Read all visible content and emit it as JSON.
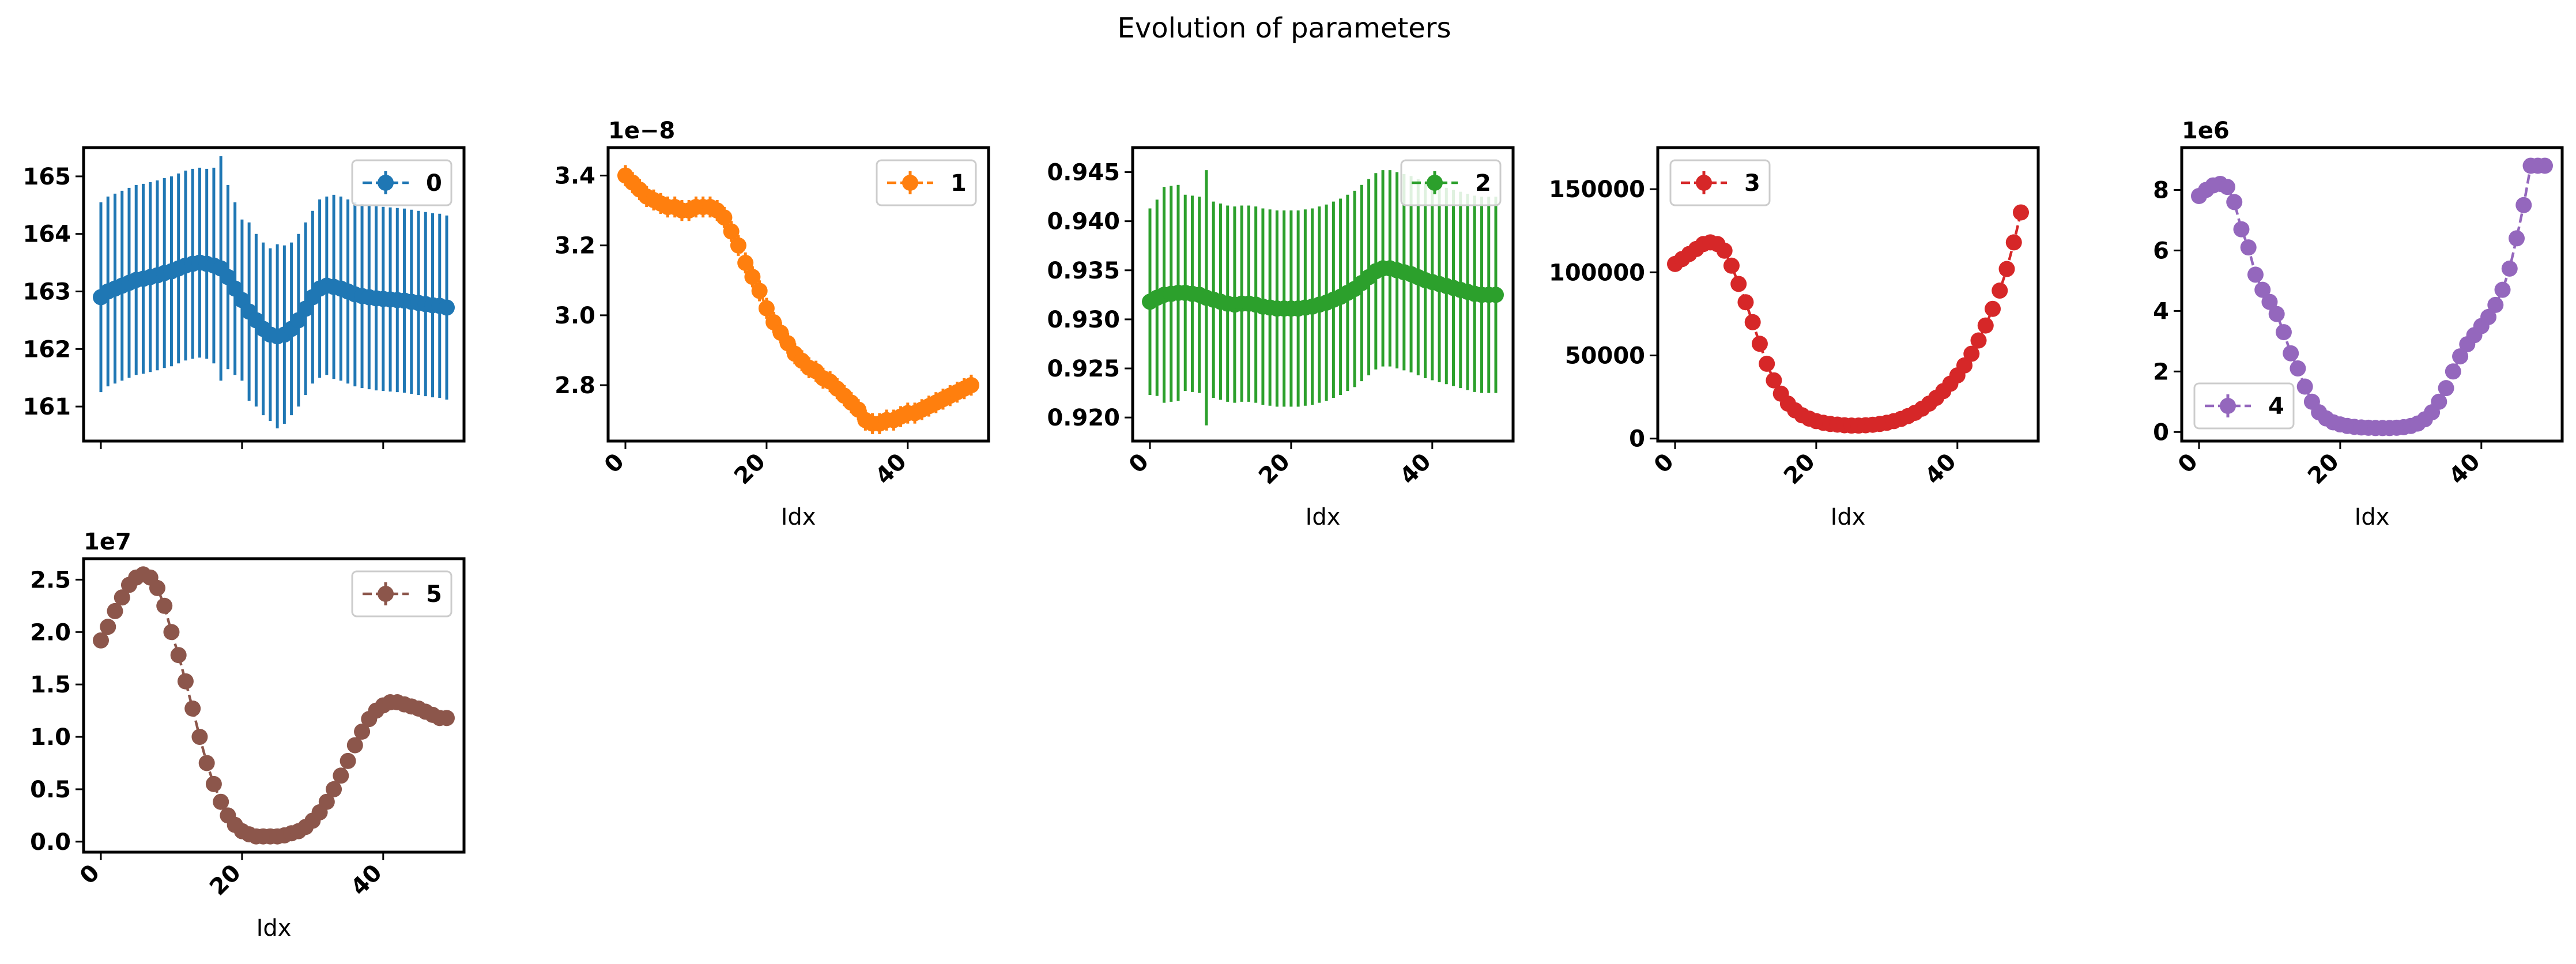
{
  "figure": {
    "title": "Evolution of parameters",
    "xlabel": "Idx"
  },
  "chart_data": [
    {
      "type": "errorbar",
      "series_name": "0",
      "color": "#1f77b4",
      "offset_text": "",
      "xlabel": "",
      "show_x_tick_labels": false,
      "legend_loc": "upper right",
      "xlim": [
        -2.45,
        51.45
      ],
      "ylim": [
        160.4,
        165.5
      ],
      "xticks": [
        0,
        20,
        40
      ],
      "yticks": [
        161,
        162,
        163,
        164,
        165
      ],
      "ytick_labels": [
        "161",
        "162",
        "163",
        "164",
        "165"
      ],
      "x": [
        0,
        1,
        2,
        3,
        4,
        5,
        6,
        7,
        8,
        9,
        10,
        11,
        12,
        13,
        14,
        15,
        16,
        17,
        18,
        19,
        20,
        21,
        22,
        23,
        24,
        25,
        26,
        27,
        28,
        29,
        30,
        31,
        32,
        33,
        34,
        35,
        36,
        37,
        38,
        39,
        40,
        41,
        42,
        43,
        44,
        45,
        46,
        47,
        48,
        49
      ],
      "y": [
        162.9,
        163.0,
        163.05,
        163.1,
        163.15,
        163.2,
        163.22,
        163.25,
        163.28,
        163.32,
        163.35,
        163.4,
        163.45,
        163.48,
        163.5,
        163.48,
        163.45,
        163.4,
        163.25,
        163.05,
        162.85,
        162.65,
        162.5,
        162.35,
        162.25,
        162.22,
        162.25,
        162.35,
        162.5,
        162.7,
        162.9,
        163.05,
        163.1,
        163.08,
        163.05,
        163.0,
        162.95,
        162.92,
        162.9,
        162.88,
        162.87,
        162.86,
        162.85,
        162.84,
        162.82,
        162.8,
        162.78,
        162.76,
        162.75,
        162.72
      ],
      "yerr": [
        1.65,
        1.65,
        1.65,
        1.65,
        1.65,
        1.65,
        1.65,
        1.65,
        1.65,
        1.65,
        1.65,
        1.65,
        1.65,
        1.65,
        1.65,
        1.65,
        1.7,
        1.95,
        1.6,
        1.5,
        1.4,
        1.55,
        1.5,
        1.5,
        1.5,
        1.6,
        1.55,
        1.5,
        1.5,
        1.5,
        1.5,
        1.55,
        1.55,
        1.6,
        1.6,
        1.6,
        1.6,
        1.6,
        1.6,
        1.6,
        1.6,
        1.6,
        1.6,
        1.6,
        1.6,
        1.6,
        1.6,
        1.6,
        1.6,
        1.6
      ]
    },
    {
      "type": "errorbar",
      "series_name": "1",
      "color": "#ff7f0e",
      "offset_text": "1e−8",
      "xlabel": "Idx",
      "show_x_tick_labels": true,
      "legend_loc": "upper right",
      "xlim": [
        -2.45,
        51.45
      ],
      "ylim": [
        2.64,
        3.48
      ],
      "xticks": [
        0,
        20,
        40
      ],
      "yticks": [
        2.8,
        3.0,
        3.2,
        3.4
      ],
      "ytick_labels": [
        "2.8",
        "3.0",
        "3.2",
        "3.4"
      ],
      "x": [
        0,
        1,
        2,
        3,
        4,
        5,
        6,
        7,
        8,
        9,
        10,
        11,
        12,
        13,
        14,
        15,
        16,
        17,
        18,
        19,
        20,
        21,
        22,
        23,
        24,
        25,
        26,
        27,
        28,
        29,
        30,
        31,
        32,
        33,
        34,
        35,
        36,
        37,
        38,
        39,
        40,
        41,
        42,
        43,
        44,
        45,
        46,
        47,
        48,
        49
      ],
      "y": [
        3.4,
        3.38,
        3.36,
        3.34,
        3.33,
        3.32,
        3.31,
        3.31,
        3.3,
        3.3,
        3.31,
        3.31,
        3.31,
        3.3,
        3.28,
        3.24,
        3.2,
        3.15,
        3.11,
        3.07,
        3.02,
        2.98,
        2.95,
        2.92,
        2.89,
        2.87,
        2.85,
        2.84,
        2.82,
        2.81,
        2.79,
        2.77,
        2.75,
        2.73,
        2.7,
        2.69,
        2.69,
        2.7,
        2.7,
        2.71,
        2.72,
        2.72,
        2.73,
        2.74,
        2.75,
        2.76,
        2.77,
        2.78,
        2.79,
        2.8
      ],
      "yerr": [
        0.03,
        0.03,
        0.03,
        0.03,
        0.03,
        0.03,
        0.03,
        0.03,
        0.03,
        0.03,
        0.03,
        0.03,
        0.03,
        0.03,
        0.03,
        0.03,
        0.03,
        0.03,
        0.03,
        0.03,
        0.03,
        0.03,
        0.03,
        0.03,
        0.03,
        0.03,
        0.03,
        0.03,
        0.03,
        0.03,
        0.03,
        0.03,
        0.03,
        0.03,
        0.03,
        0.03,
        0.03,
        0.03,
        0.03,
        0.03,
        0.03,
        0.03,
        0.03,
        0.03,
        0.03,
        0.03,
        0.03,
        0.03,
        0.03,
        0.03
      ]
    },
    {
      "type": "errorbar",
      "series_name": "2",
      "color": "#2ca02c",
      "offset_text": "",
      "xlabel": "Idx",
      "show_x_tick_labels": true,
      "legend_loc": "upper right",
      "xlim": [
        -2.45,
        51.45
      ],
      "ylim": [
        0.9176,
        0.9475
      ],
      "xticks": [
        0,
        20,
        40
      ],
      "yticks": [
        0.92,
        0.925,
        0.93,
        0.935,
        0.94,
        0.945
      ],
      "ytick_labels": [
        "0.920",
        "0.925",
        "0.930",
        "0.935",
        "0.940",
        "0.945"
      ],
      "x": [
        0,
        1,
        2,
        3,
        4,
        5,
        6,
        7,
        8,
        9,
        10,
        11,
        12,
        13,
        14,
        15,
        16,
        17,
        18,
        19,
        20,
        21,
        22,
        23,
        24,
        25,
        26,
        27,
        28,
        29,
        30,
        31,
        32,
        33,
        34,
        35,
        36,
        37,
        38,
        39,
        40,
        41,
        42,
        43,
        44,
        45,
        46,
        47,
        48,
        49
      ],
      "y": [
        0.9318,
        0.9322,
        0.9325,
        0.9326,
        0.9327,
        0.9327,
        0.9326,
        0.9325,
        0.9322,
        0.932,
        0.9318,
        0.9316,
        0.9315,
        0.9316,
        0.9316,
        0.9315,
        0.9313,
        0.9312,
        0.9311,
        0.9311,
        0.9311,
        0.9311,
        0.9312,
        0.9313,
        0.9315,
        0.9317,
        0.932,
        0.9323,
        0.9327,
        0.9331,
        0.9337,
        0.9343,
        0.9349,
        0.9352,
        0.9352,
        0.935,
        0.9348,
        0.9346,
        0.9343,
        0.934,
        0.9338,
        0.9336,
        0.9334,
        0.9332,
        0.933,
        0.9328,
        0.9326,
        0.9325,
        0.9325,
        0.9325
      ],
      "yerr": [
        0.0095,
        0.01,
        0.011,
        0.011,
        0.011,
        0.01,
        0.01,
        0.01,
        0.013,
        0.01,
        0.01,
        0.01,
        0.01,
        0.01,
        0.01,
        0.01,
        0.01,
        0.01,
        0.01,
        0.01,
        0.01,
        0.01,
        0.01,
        0.01,
        0.01,
        0.01,
        0.01,
        0.01,
        0.01,
        0.01,
        0.01,
        0.01,
        0.01,
        0.01,
        0.01,
        0.01,
        0.01,
        0.01,
        0.01,
        0.01,
        0.01,
        0.01,
        0.01,
        0.01,
        0.01,
        0.01,
        0.01,
        0.01,
        0.01,
        0.01
      ]
    },
    {
      "type": "errorbar",
      "series_name": "3",
      "color": "#d62728",
      "offset_text": "",
      "xlabel": "Idx",
      "show_x_tick_labels": true,
      "legend_loc": "upper left",
      "xlim": [
        -2.45,
        51.45
      ],
      "ylim": [
        -1500,
        175000
      ],
      "xticks": [
        0,
        20,
        40
      ],
      "yticks": [
        0,
        50000,
        100000,
        150000
      ],
      "ytick_labels": [
        "0",
        "50000",
        "100000",
        "150000"
      ],
      "x": [
        0,
        1,
        2,
        3,
        4,
        5,
        6,
        7,
        8,
        9,
        10,
        11,
        12,
        13,
        14,
        15,
        16,
        17,
        18,
        19,
        20,
        21,
        22,
        23,
        24,
        25,
        26,
        27,
        28,
        29,
        30,
        31,
        32,
        33,
        34,
        35,
        36,
        37,
        38,
        39,
        40,
        41,
        42,
        43,
        44,
        45,
        46,
        47,
        48,
        49
      ],
      "y": [
        105000,
        108000,
        111000,
        114000,
        117000,
        118000,
        117000,
        113000,
        104000,
        93000,
        82000,
        70000,
        57000,
        45000,
        35000,
        27000,
        21000,
        17000,
        14000,
        12000,
        10500,
        9500,
        8800,
        8400,
        8000,
        7800,
        7800,
        8000,
        8300,
        8800,
        9500,
        10500,
        11800,
        13500,
        15500,
        18000,
        21000,
        24500,
        28500,
        33000,
        38000,
        44000,
        51000,
        59000,
        68000,
        78000,
        89000,
        102000,
        118000,
        136000
      ],
      "yerr": [
        0,
        0,
        0,
        0,
        0,
        0,
        0,
        0,
        0,
        0,
        0,
        0,
        0,
        0,
        0,
        0,
        0,
        0,
        0,
        0,
        0,
        0,
        0,
        0,
        0,
        0,
        0,
        0,
        0,
        0,
        0,
        0,
        0,
        0,
        0,
        0,
        0,
        0,
        0,
        0,
        0,
        0,
        0,
        0,
        0,
        0,
        0,
        0,
        0,
        0
      ]
    },
    {
      "type": "errorbar",
      "series_name": "4",
      "color": "#9467bd",
      "offset_text": "1e6",
      "xlabel": "Idx",
      "show_x_tick_labels": true,
      "legend_loc": "lower left",
      "xlim": [
        -2.45,
        51.45
      ],
      "ylim": [
        -0.3,
        9.4
      ],
      "xticks": [
        0,
        20,
        40
      ],
      "yticks": [
        0,
        2,
        4,
        6,
        8
      ],
      "ytick_labels": [
        "0",
        "2",
        "4",
        "6",
        "8"
      ],
      "x": [
        0,
        1,
        2,
        3,
        4,
        5,
        6,
        7,
        8,
        9,
        10,
        11,
        12,
        13,
        14,
        15,
        16,
        17,
        18,
        19,
        20,
        21,
        22,
        23,
        24,
        25,
        26,
        27,
        28,
        29,
        30,
        31,
        32,
        33,
        34,
        35,
        36,
        37,
        38,
        39,
        40,
        41,
        42,
        43,
        44,
        45,
        46,
        47,
        48,
        49
      ],
      "y": [
        7.8,
        8.0,
        8.15,
        8.2,
        8.1,
        7.6,
        6.7,
        6.1,
        5.2,
        4.7,
        4.3,
        3.9,
        3.3,
        2.6,
        2.1,
        1.5,
        1.0,
        0.65,
        0.45,
        0.32,
        0.25,
        0.2,
        0.17,
        0.15,
        0.14,
        0.13,
        0.13,
        0.13,
        0.14,
        0.16,
        0.2,
        0.28,
        0.42,
        0.65,
        1.0,
        1.45,
        2.0,
        2.5,
        2.9,
        3.2,
        3.5,
        3.8,
        4.2,
        4.7,
        5.4,
        6.4,
        7.5,
        8.8,
        8.8,
        8.8
      ],
      "yerr": [
        0,
        0,
        0,
        0,
        0,
        0,
        0,
        0,
        0,
        0,
        0,
        0,
        0,
        0,
        0,
        0,
        0,
        0,
        0,
        0,
        0,
        0,
        0,
        0,
        0,
        0,
        0,
        0,
        0,
        0,
        0,
        0,
        0,
        0,
        0,
        0,
        0,
        0,
        0,
        0,
        0,
        0,
        0,
        0,
        0,
        0,
        0,
        0,
        0,
        0
      ]
    },
    {
      "type": "errorbar",
      "series_name": "5",
      "color": "#8c564b",
      "offset_text": "1e7",
      "xlabel": "Idx",
      "show_x_tick_labels": true,
      "legend_loc": "upper right",
      "xlim": [
        -2.45,
        51.45
      ],
      "ylim": [
        -0.1,
        2.7
      ],
      "xticks": [
        0,
        20,
        40
      ],
      "yticks": [
        0.0,
        0.5,
        1.0,
        1.5,
        2.0,
        2.5
      ],
      "ytick_labels": [
        "0.0",
        "0.5",
        "1.0",
        "1.5",
        "2.0",
        "2.5"
      ],
      "x": [
        0,
        1,
        2,
        3,
        4,
        5,
        6,
        7,
        8,
        9,
        10,
        11,
        12,
        13,
        14,
        15,
        16,
        17,
        18,
        19,
        20,
        21,
        22,
        23,
        24,
        25,
        26,
        27,
        28,
        29,
        30,
        31,
        32,
        33,
        34,
        35,
        36,
        37,
        38,
        39,
        40,
        41,
        42,
        43,
        44,
        45,
        46,
        47,
        48,
        49
      ],
      "y": [
        1.92,
        2.05,
        2.2,
        2.33,
        2.45,
        2.52,
        2.55,
        2.52,
        2.42,
        2.25,
        2.0,
        1.78,
        1.53,
        1.27,
        1.0,
        0.75,
        0.55,
        0.38,
        0.25,
        0.16,
        0.1,
        0.07,
        0.05,
        0.05,
        0.05,
        0.05,
        0.06,
        0.08,
        0.1,
        0.14,
        0.2,
        0.28,
        0.38,
        0.5,
        0.63,
        0.77,
        0.92,
        1.05,
        1.17,
        1.25,
        1.3,
        1.33,
        1.33,
        1.31,
        1.29,
        1.27,
        1.24,
        1.21,
        1.18,
        1.18
      ],
      "yerr": [
        0,
        0,
        0,
        0,
        0,
        0,
        0,
        0,
        0,
        0,
        0,
        0,
        0,
        0,
        0,
        0,
        0,
        0,
        0,
        0,
        0,
        0,
        0,
        0,
        0,
        0,
        0,
        0,
        0,
        0,
        0,
        0,
        0,
        0,
        0,
        0,
        0,
        0,
        0,
        0,
        0,
        0,
        0,
        0,
        0,
        0,
        0,
        0,
        0,
        0
      ]
    }
  ]
}
